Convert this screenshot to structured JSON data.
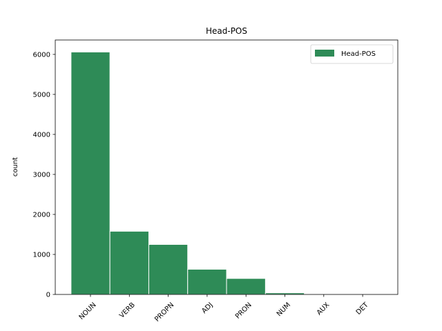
{
  "chart_data": {
    "type": "bar",
    "title": "Head-POS",
    "xlabel": "",
    "ylabel": "count",
    "categories": [
      "NOUN",
      "VERB",
      "PROPN",
      "ADJ",
      "PRON",
      "NUM",
      "AUX",
      "DET"
    ],
    "series": [
      {
        "name": "Head-POS",
        "color": "#2e8b57",
        "values": [
          6060,
          1580,
          1250,
          630,
          400,
          40,
          5,
          3
        ]
      }
    ],
    "ylim": [
      0,
      6360
    ],
    "yticks": [
      0,
      1000,
      2000,
      3000,
      4000,
      5000,
      6000
    ],
    "grid": false,
    "legend_position": "top-right"
  }
}
